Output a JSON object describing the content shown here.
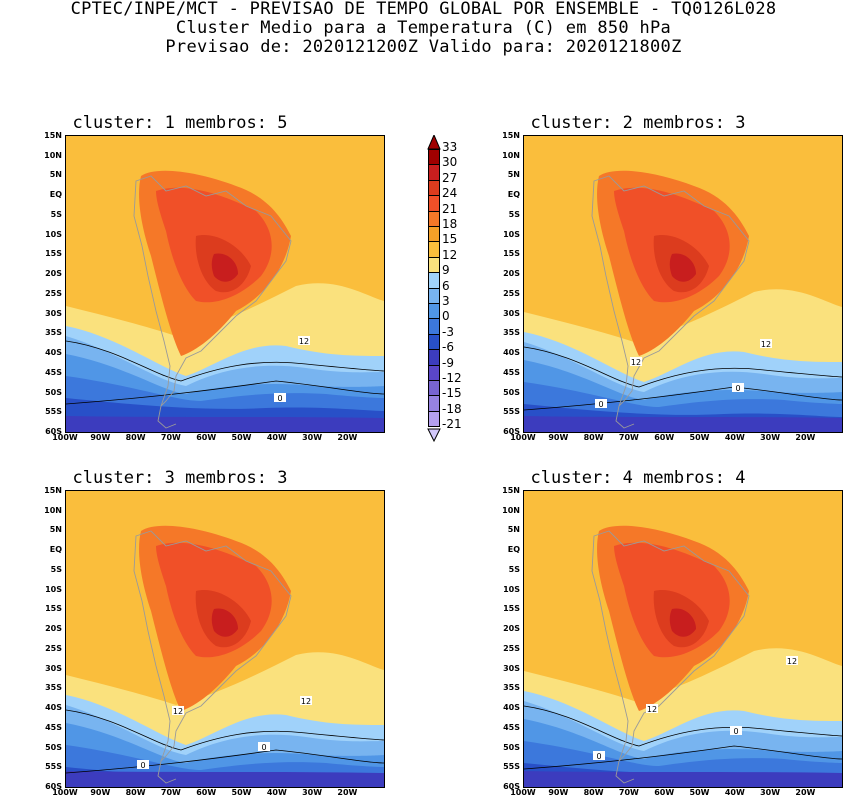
{
  "header": {
    "line1": "CPTEC/INPE/MCT - PREVISAO DE TEMPO GLOBAL POR ENSEMBLE - TQ0126L028",
    "line2": "Cluster Medio para a Temperatura (C) em 850 hPa",
    "line3": "Previsao de: 2020121200Z   Valido para: 2020121800Z"
  },
  "panels": [
    {
      "title": "cluster: 1   membros: 5",
      "contour_labels": [
        "12",
        "0"
      ]
    },
    {
      "title": "cluster: 2   membros: 3",
      "contour_labels": [
        "12",
        "12",
        "0",
        "0"
      ]
    },
    {
      "title": "cluster: 3   membros: 3",
      "contour_labels": [
        "12",
        "12",
        "0",
        "0"
      ]
    },
    {
      "title": "cluster: 4   membros: 4",
      "contour_labels": [
        "12",
        "12",
        "0",
        "0"
      ]
    }
  ],
  "axes": {
    "lat_ticks": [
      "15N",
      "10N",
      "5N",
      "EQ",
      "5S",
      "10S",
      "15S",
      "20S",
      "25S",
      "30S",
      "35S",
      "40S",
      "45S",
      "50S",
      "55S",
      "60S"
    ],
    "lon_ticks": [
      "100W",
      "90W",
      "80W",
      "70W",
      "60W",
      "50W",
      "40W",
      "30W",
      "20W"
    ]
  },
  "colorbar": {
    "levels": [
      "33",
      "30",
      "27",
      "24",
      "21",
      "18",
      "15",
      "12",
      "9",
      "6",
      "3",
      "0",
      "-3",
      "-6",
      "-9",
      "-12",
      "-15",
      "-18",
      "-21"
    ],
    "colors": [
      "#a00000",
      "#c81e1e",
      "#dc3c1e",
      "#f05028",
      "#f57828",
      "#f5a028",
      "#fabe3c",
      "#fae17d",
      "#a0d2fa",
      "#78b4f0",
      "#5096e6",
      "#3c78dc",
      "#2850c8",
      "#3c3cbe",
      "#5a46c8",
      "#7864d2",
      "#9682e1",
      "#b4a0f0",
      "#d2c8fa"
    ]
  }
}
